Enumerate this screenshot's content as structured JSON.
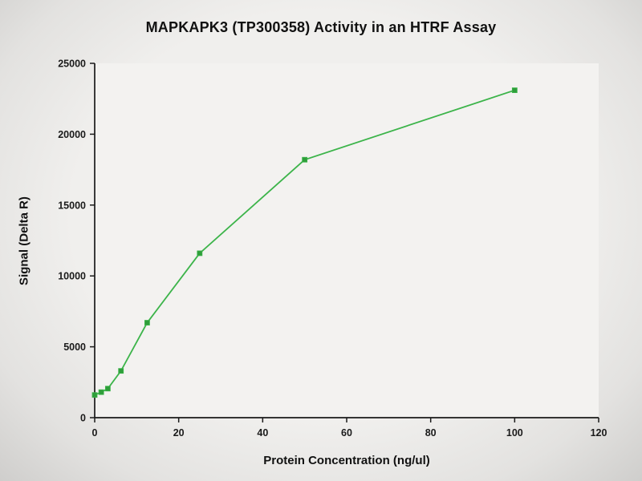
{
  "chart_data": {
    "type": "line",
    "title": "MAPKAPK3 (TP300358) Activity in an HTRF Assay",
    "xlabel": "Protein Concentration (ng/ul)",
    "ylabel": "Signal (Delta R)",
    "x": [
      0,
      1.56,
      3.13,
      6.25,
      12.5,
      25,
      50,
      100
    ],
    "y": [
      1600,
      1800,
      2050,
      3300,
      6700,
      11600,
      18200,
      23100
    ],
    "xlim": [
      0,
      120
    ],
    "ylim": [
      0,
      25000
    ],
    "x_ticks": [
      0,
      20,
      40,
      60,
      80,
      100,
      120
    ],
    "y_ticks": [
      0,
      5000,
      10000,
      15000,
      20000,
      25000
    ],
    "grid": false,
    "legend": false,
    "line_color": "#3cb44a",
    "marker_color": "#2e9e3a",
    "marker_shape": "square",
    "axis_color": "#1a1a1a",
    "plot_bg": "#f3f2f0"
  }
}
